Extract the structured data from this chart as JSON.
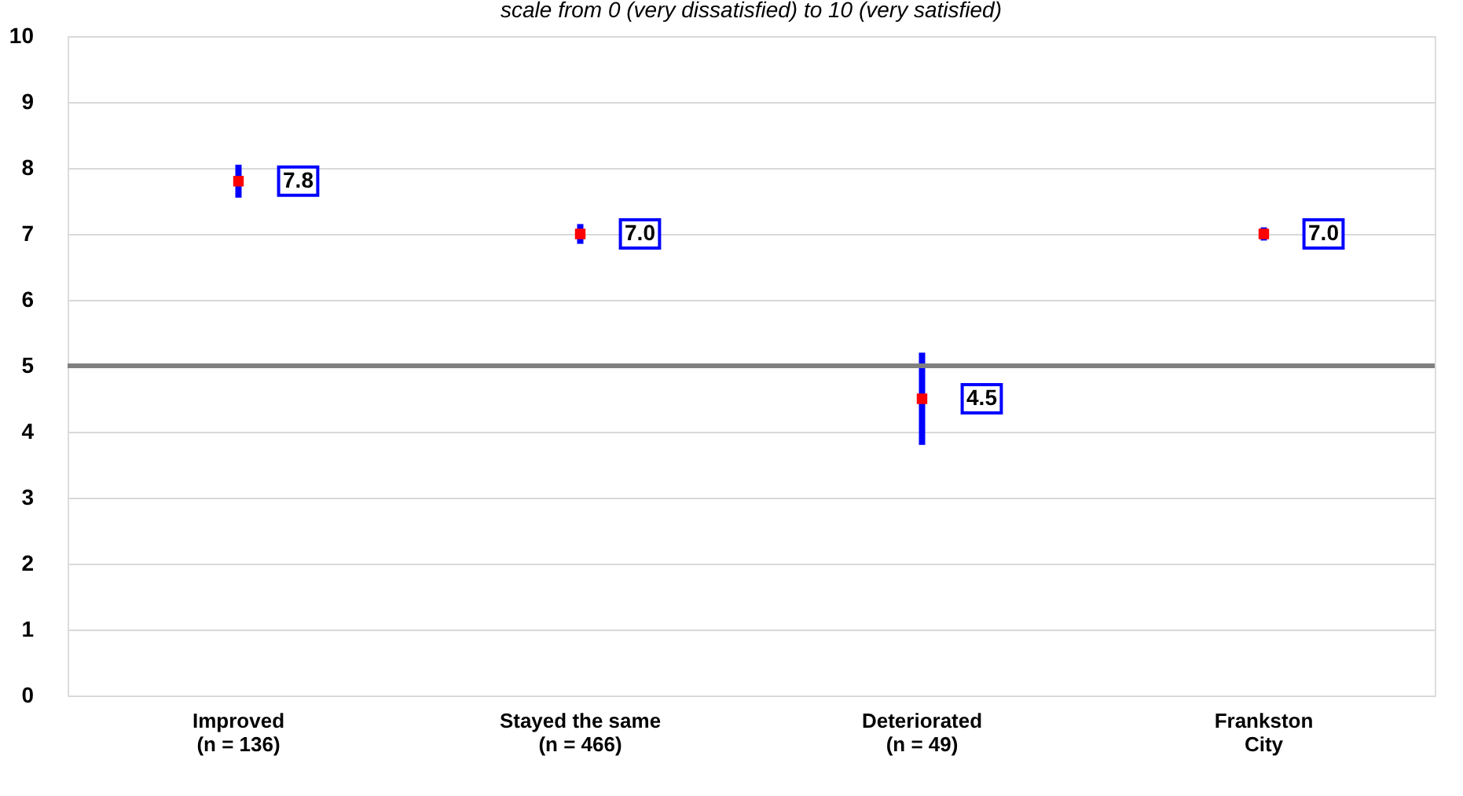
{
  "chart_data": {
    "type": "scatter",
    "subtitle": "scale from 0 (very dissatisfied) to 10 (very satisfied)",
    "categories": [
      "Improved\n(n = 136)",
      "Stayed the same\n(n = 466)",
      "Deteriorated\n(n = 49)",
      "Frankston\nCity"
    ],
    "series": [
      {
        "color": "#ff0000",
        "values": [
          7.8,
          7.0,
          4.5,
          7.0
        ],
        "value_labels": [
          "7.8",
          "7.0",
          "4.5",
          "7.0"
        ],
        "errors": [
          0.25,
          0.15,
          0.7,
          0.1
        ]
      }
    ],
    "marker": "square",
    "ylim": [
      0,
      10
    ],
    "yticks": [
      0,
      1,
      2,
      3,
      4,
      5,
      6,
      7,
      8,
      9,
      10
    ],
    "grid": "y",
    "ref_lines": [
      {
        "axis": "y",
        "value": 5,
        "color": "#808080"
      }
    ]
  }
}
